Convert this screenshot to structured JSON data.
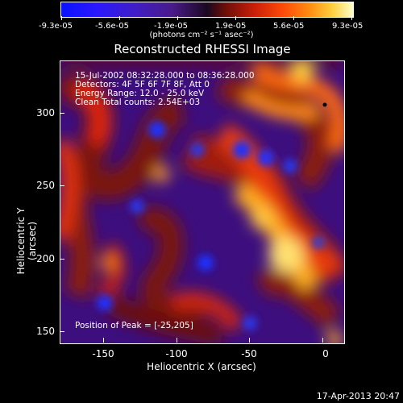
{
  "colorbar": {
    "tick_labels": [
      "-9.3e-05",
      "-5.6e-05",
      "-1.9e-05",
      "1.9e-05",
      "5.6e-05",
      "9.3e-05"
    ],
    "units": "(photons cm⁻² s⁻¹ asec⁻²)"
  },
  "title": "Reconstructed RHESSI Image",
  "info": {
    "line1": "15-Jul-2002 08:32:28.000 to 08:36:28.000",
    "line2": "Detectors: 4F 5F 6F 7F 8F, Att 0",
    "line3": "Energy Range: 12.0 - 25.0 keV",
    "line4": "Clean    Total counts: 2.54E+03",
    "peak": "Position of Peak = [-25,205]"
  },
  "axes": {
    "xlabel": "Heliocentric X (arcsec)",
    "ylabel": "Heliocentric Y (arcsec)",
    "xticks": [
      "-150",
      "-100",
      "-50",
      "0"
    ],
    "yticks": [
      "300",
      "250",
      "200",
      "150"
    ]
  },
  "timestamp": "17-Apr-2013 20:47"
}
